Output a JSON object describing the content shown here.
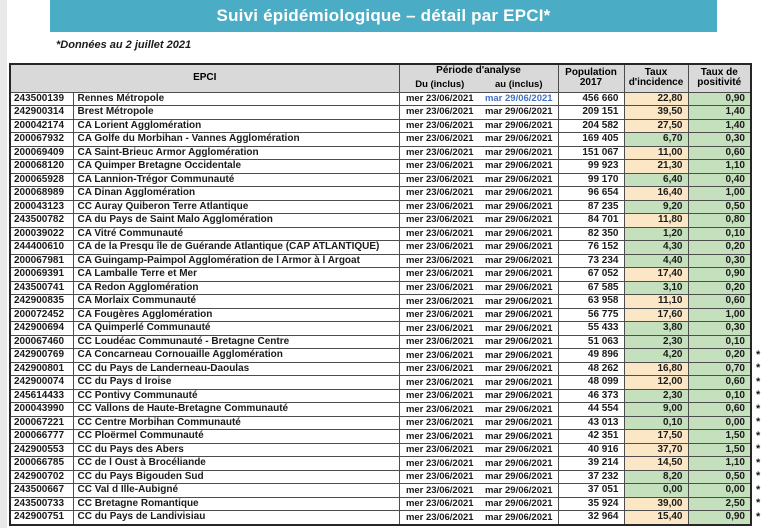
{
  "banner": {
    "title": "Suivi épidémiologique – détail par EPCI*"
  },
  "subtitle": "*Données au 2 juillet 2021",
  "table": {
    "headers": {
      "epci": "EPCI",
      "periode": "Période d'analyse",
      "du": "Du (inclus)",
      "au": "au (inclus)",
      "population_l1": "Population",
      "population_l2": "2017",
      "incidence_l1": "Taux",
      "incidence_l2": "d'incidence",
      "positivite_l1": "Taux de",
      "positivite_l2": "positivité"
    },
    "colors": {
      "banner_bg": "#4BACC6",
      "header_bg": "#D9D9D9",
      "incidence_high_bg": "#FBE7C5",
      "rate_ok_bg": "#C5E0BC",
      "first_row_date_blue": "#4472C4"
    },
    "rows": [
      {
        "code": "243500139",
        "name": "Rennes Métropole",
        "du": "mer 23/06/2021",
        "au": "mar 29/06/2021",
        "pop": "456 660",
        "inc": "22,80",
        "lvl": "high",
        "pos": "0,90",
        "ast": false,
        "blue": true
      },
      {
        "code": "242900314",
        "name": "Brest Métropole",
        "du": "mer 23/06/2021",
        "au": "mar 29/06/2021",
        "pop": "209 151",
        "inc": "39,50",
        "lvl": "high",
        "pos": "1,40",
        "ast": false
      },
      {
        "code": "200042174",
        "name": "CA Lorient Agglomération",
        "du": "mer 23/06/2021",
        "au": "mar 29/06/2021",
        "pop": "204 582",
        "inc": "27,50",
        "lvl": "high",
        "pos": "1,40",
        "ast": false
      },
      {
        "code": "200067932",
        "name": "CA Golfe du Morbihan - Vannes Agglomération",
        "du": "mer 23/06/2021",
        "au": "mar 29/06/2021",
        "pop": "169 405",
        "inc": "6,70",
        "lvl": "ok",
        "pos": "0,30",
        "ast": false
      },
      {
        "code": "200069409",
        "name": "CA Saint-Brieuc Armor Agglomération",
        "du": "mer 23/06/2021",
        "au": "mar 29/06/2021",
        "pop": "151 067",
        "inc": "11,00",
        "lvl": "high",
        "pos": "0,60",
        "ast": false
      },
      {
        "code": "200068120",
        "name": "CA Quimper Bretagne Occidentale",
        "du": "mer 23/06/2021",
        "au": "mar 29/06/2021",
        "pop": "99 923",
        "inc": "21,30",
        "lvl": "high",
        "pos": "1,10",
        "ast": false
      },
      {
        "code": "200065928",
        "name": "CA Lannion-Trégor Communauté",
        "du": "mer 23/06/2021",
        "au": "mar 29/06/2021",
        "pop": "99 170",
        "inc": "6,40",
        "lvl": "ok",
        "pos": "0,40",
        "ast": false
      },
      {
        "code": "200068989",
        "name": "CA Dinan Agglomération",
        "du": "mer 23/06/2021",
        "au": "mar 29/06/2021",
        "pop": "96 654",
        "inc": "16,40",
        "lvl": "high",
        "pos": "1,00",
        "ast": false
      },
      {
        "code": "200043123",
        "name": "CC Auray Quiberon Terre Atlantique",
        "du": "mer 23/06/2021",
        "au": "mar 29/06/2021",
        "pop": "87 235",
        "inc": "9,20",
        "lvl": "ok",
        "pos": "0,50",
        "ast": false
      },
      {
        "code": "243500782",
        "name": "CA du Pays de Saint Malo Agglomération",
        "du": "mer 23/06/2021",
        "au": "mar 29/06/2021",
        "pop": "84 701",
        "inc": "11,80",
        "lvl": "high",
        "pos": "0,80",
        "ast": false
      },
      {
        "code": "200039022",
        "name": "CA Vitré Communauté",
        "du": "mer 23/06/2021",
        "au": "mar 29/06/2021",
        "pop": "82 350",
        "inc": "1,20",
        "lvl": "ok",
        "pos": "0,10",
        "ast": false
      },
      {
        "code": "244400610",
        "name": "CA de la Presqu île de Guérande Atlantique (CAP ATLANTIQUE)",
        "du": "mer 23/06/2021",
        "au": "mar 29/06/2021",
        "pop": "76 152",
        "inc": "4,30",
        "lvl": "ok",
        "pos": "0,20",
        "ast": false
      },
      {
        "code": "200067981",
        "name": "CA Guingamp-Paimpol Agglomération de l Armor à  l Argoat",
        "du": "mer 23/06/2021",
        "au": "mar 29/06/2021",
        "pop": "73 234",
        "inc": "4,40",
        "lvl": "ok",
        "pos": "0,30",
        "ast": false
      },
      {
        "code": "200069391",
        "name": "CA Lamballe Terre et Mer",
        "du": "mer 23/06/2021",
        "au": "mar 29/06/2021",
        "pop": "67 052",
        "inc": "17,40",
        "lvl": "high",
        "pos": "0,90",
        "ast": false
      },
      {
        "code": "243500741",
        "name": "CA Redon Agglomération",
        "du": "mer 23/06/2021",
        "au": "mar 29/06/2021",
        "pop": "67 585",
        "inc": "3,10",
        "lvl": "ok",
        "pos": "0,20",
        "ast": false
      },
      {
        "code": "242900835",
        "name": "CA Morlaix Communauté",
        "du": "mer 23/06/2021",
        "au": "mar 29/06/2021",
        "pop": "63 958",
        "inc": "11,10",
        "lvl": "high",
        "pos": "0,60",
        "ast": false
      },
      {
        "code": "200072452",
        "name": "CA Fougères Agglomération",
        "du": "mer 23/06/2021",
        "au": "mar 29/06/2021",
        "pop": "56 775",
        "inc": "17,60",
        "lvl": "high",
        "pos": "1,00",
        "ast": false
      },
      {
        "code": "242900694",
        "name": "CA Quimperlé Communauté",
        "du": "mer 23/06/2021",
        "au": "mar 29/06/2021",
        "pop": "55 433",
        "inc": "3,80",
        "lvl": "ok",
        "pos": "0,30",
        "ast": false
      },
      {
        "code": "200067460",
        "name": "CC Loudéac Communauté - Bretagne Centre",
        "du": "mer 23/06/2021",
        "au": "mar 29/06/2021",
        "pop": "51 063",
        "inc": "2,30",
        "lvl": "ok",
        "pos": "0,10",
        "ast": false
      },
      {
        "code": "242900769",
        "name": "CA Concarneau Cornouaille Agglomération",
        "du": "mer 23/06/2021",
        "au": "mar 29/06/2021",
        "pop": "49 896",
        "inc": "4,20",
        "lvl": "ok",
        "pos": "0,20",
        "ast": true
      },
      {
        "code": "242900801",
        "name": "CC du Pays de Landerneau-Daoulas",
        "du": "mer 23/06/2021",
        "au": "mar 29/06/2021",
        "pop": "48 262",
        "inc": "16,80",
        "lvl": "high",
        "pos": "0,70",
        "ast": true
      },
      {
        "code": "242900074",
        "name": "CC du Pays d Iroise",
        "du": "mer 23/06/2021",
        "au": "mar 29/06/2021",
        "pop": "48 099",
        "inc": "12,00",
        "lvl": "high",
        "pos": "0,60",
        "ast": true
      },
      {
        "code": "245614433",
        "name": "CC Pontivy Communauté",
        "du": "mer 23/06/2021",
        "au": "mar 29/06/2021",
        "pop": "46 373",
        "inc": "2,30",
        "lvl": "ok",
        "pos": "0,10",
        "ast": true
      },
      {
        "code": "200043990",
        "name": "CC Vallons de Haute-Bretagne Communauté",
        "du": "mer 23/06/2021",
        "au": "mar 29/06/2021",
        "pop": "44 554",
        "inc": "9,00",
        "lvl": "ok",
        "pos": "0,60",
        "ast": true
      },
      {
        "code": "200067221",
        "name": "CC Centre Morbihan Communauté",
        "du": "mer 23/06/2021",
        "au": "mar 29/06/2021",
        "pop": "43 013",
        "inc": "0,10",
        "lvl": "ok",
        "pos": "0,00",
        "ast": true
      },
      {
        "code": "200066777",
        "name": "CC Ploërmel Communauté",
        "du": "mer 23/06/2021",
        "au": "mar 29/06/2021",
        "pop": "42 351",
        "inc": "17,50",
        "lvl": "high",
        "pos": "1,50",
        "ast": true
      },
      {
        "code": "242900553",
        "name": "CC du Pays des Abers",
        "du": "mer 23/06/2021",
        "au": "mar 29/06/2021",
        "pop": "40 916",
        "inc": "37,70",
        "lvl": "high",
        "pos": "1,50",
        "ast": true
      },
      {
        "code": "200066785",
        "name": "CC de l Oust à  Brocéliande",
        "du": "mer 23/06/2021",
        "au": "mar 29/06/2021",
        "pop": "39 214",
        "inc": "14,50",
        "lvl": "high",
        "pos": "1,10",
        "ast": true
      },
      {
        "code": "242900702",
        "name": "CC du Pays Bigouden Sud",
        "du": "mer 23/06/2021",
        "au": "mar 29/06/2021",
        "pop": "37 232",
        "inc": "8,20",
        "lvl": "ok",
        "pos": "0,50",
        "ast": true
      },
      {
        "code": "243500667",
        "name": "CC Val d Ille-Aubigné",
        "du": "mer 23/06/2021",
        "au": "mar 29/06/2021",
        "pop": "37 051",
        "inc": "0,00",
        "lvl": "ok",
        "pos": "0,00",
        "ast": true
      },
      {
        "code": "243500733",
        "name": "CC Bretagne Romantique",
        "du": "mer 23/06/2021",
        "au": "mar 29/06/2021",
        "pop": "35 924",
        "inc": "39,00",
        "lvl": "high",
        "pos": "2,50",
        "ast": true
      },
      {
        "code": "242900751",
        "name": "CC du Pays de Landivisiau",
        "du": "mer 23/06/2021",
        "au": "mar 29/06/2021",
        "pop": "32 964",
        "inc": "15,40",
        "lvl": "high",
        "pos": "0,90",
        "ast": true
      }
    ]
  }
}
